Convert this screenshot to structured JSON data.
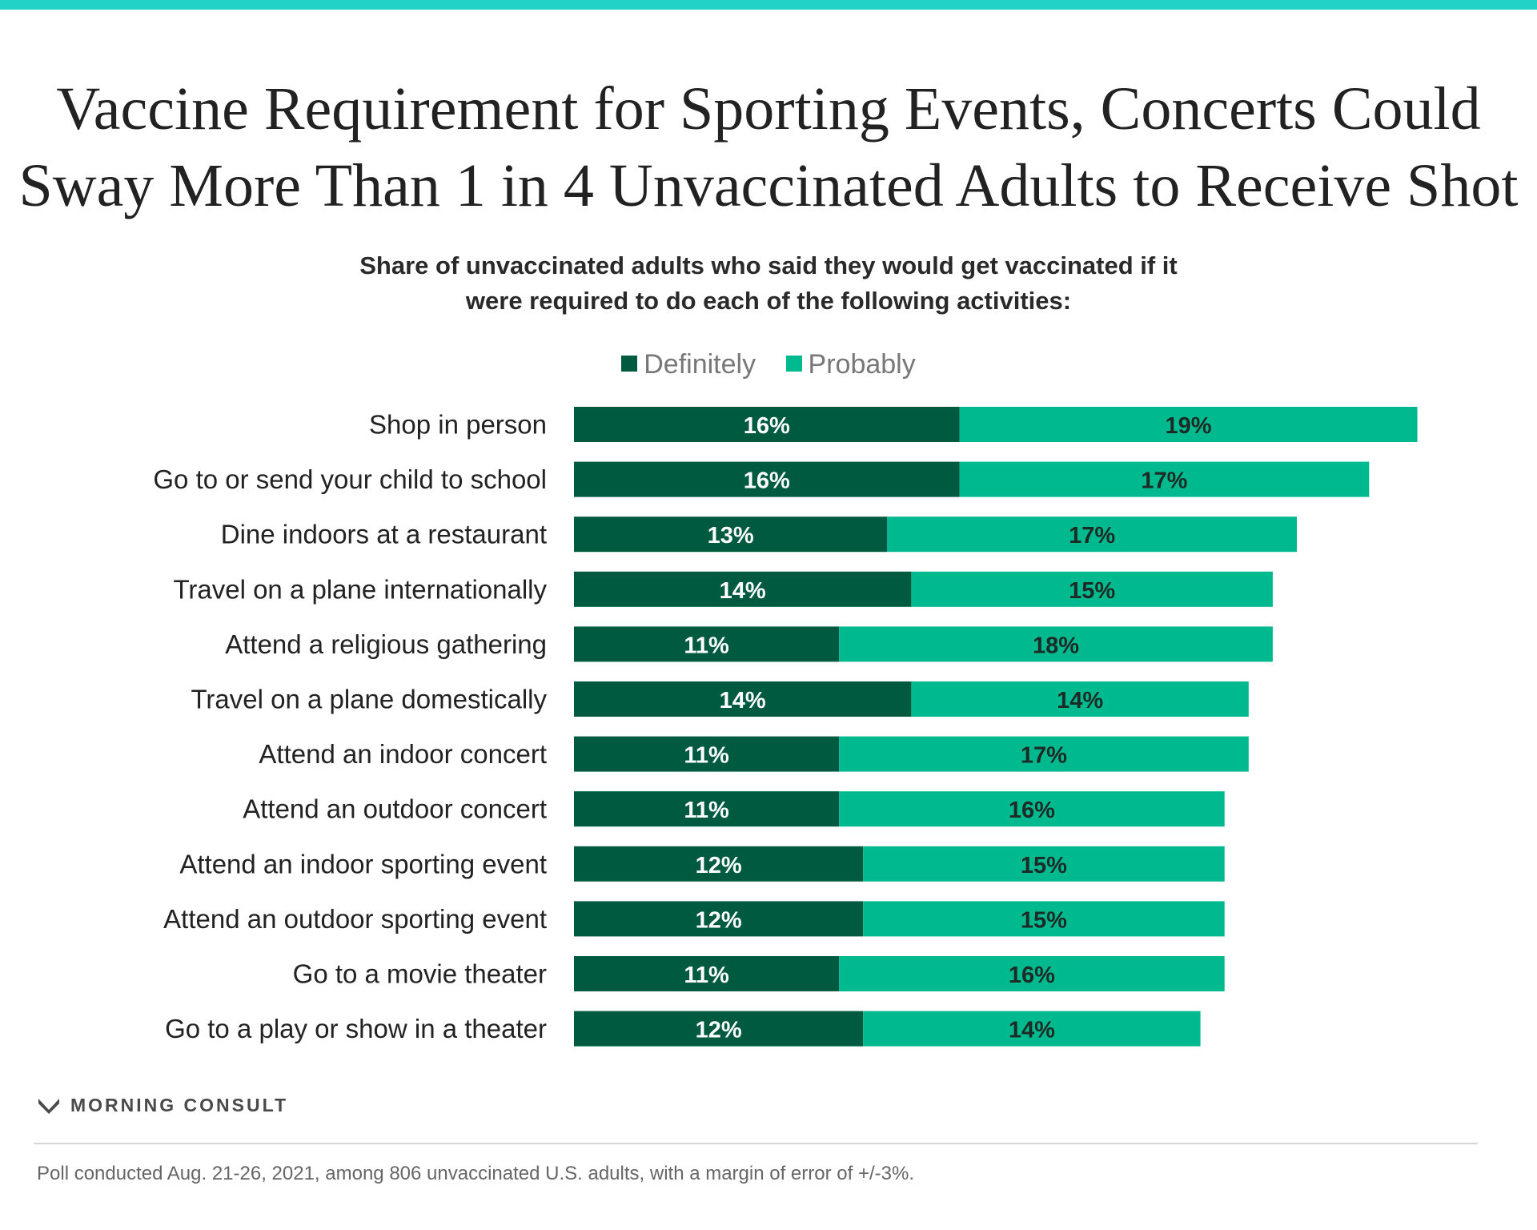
{
  "colors": {
    "top_bar": "#22d2c6",
    "definitely": "#005a3f",
    "probably": "#00b98e",
    "label_text": "#222222",
    "value_light": "#ffffff",
    "value_dark": "#1e2a26"
  },
  "title_lines": [
    "Vaccine Requirement for Sporting Events, Concerts Could",
    "Sway More Than 1 in 4 Unvaccinated Adults to Receive Shot"
  ],
  "subtitle_lines": [
    "Share of unvaccinated adults who said they would get vaccinated if it",
    "were required to do each of the following activities:"
  ],
  "chart_data": {
    "type": "bar",
    "orientation": "horizontal",
    "stacked": true,
    "categories": [
      "Shop in person",
      "Go to or send your child to school",
      "Dine indoors at a restaurant",
      "Travel on a plane internationally",
      "Attend a religious gathering",
      "Travel on a plane domestically",
      "Attend an indoor concert",
      "Attend an outdoor concert",
      "Attend an indoor sporting event",
      "Attend an outdoor sporting event",
      "Go to a movie theater",
      "Go to a play or show in a theater"
    ],
    "series": [
      {
        "name": "Definitely",
        "values": [
          16,
          16,
          13,
          14,
          11,
          14,
          11,
          11,
          12,
          12,
          11,
          12
        ]
      },
      {
        "name": "Probably",
        "values": [
          19,
          17,
          17,
          15,
          18,
          14,
          17,
          16,
          15,
          15,
          16,
          14
        ]
      }
    ],
    "value_suffix": "%",
    "legend_position": "top",
    "grid": false
  },
  "brand": {
    "name": "MORNING CONSULT",
    "logo_icon": "morning-consult-m-icon"
  },
  "footnote": "Poll conducted Aug. 21-26, 2021, among 806 unvaccinated U.S. adults, with a margin of error of +/-3%."
}
